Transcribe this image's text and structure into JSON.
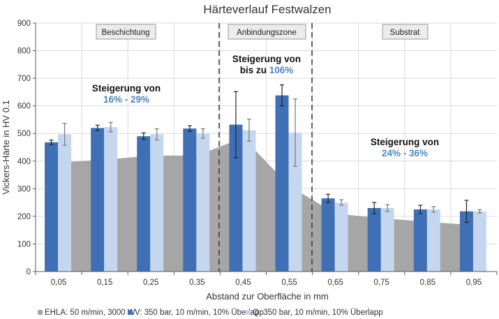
{
  "chart_data": {
    "type": "bar",
    "title": "Härteverlauf Festwalzen",
    "xlabel": "Abstand zur Oberfläche in mm",
    "ylabel": "Vickers-Härte in HV 0.1",
    "ylim": [
      0,
      900
    ],
    "yticks": [
      "0",
      "100",
      "200",
      "300",
      "400",
      "500",
      "600",
      "700",
      "800",
      "900"
    ],
    "grid": true,
    "legend_position": "bottom",
    "categories": [
      "0,05",
      "0,15",
      "0,25",
      "0,35",
      "0,45",
      "0,55",
      "0,65",
      "0,75",
      "0,85",
      "0,95"
    ],
    "series": [
      {
        "name": "EHLA: 50 m/min, 3000 W",
        "type": "area",
        "color": "#a6a6a6",
        "values": [
          395,
          405,
          420,
          420,
          485,
          310,
          210,
          193,
          180,
          168
        ]
      },
      {
        "name": "V: 350 bar, 10 m/min, 10% Überlapp",
        "type": "bar",
        "color": "#3f6fb5",
        "error_color": "#222222",
        "values": [
          468,
          520,
          490,
          518,
          532,
          638,
          265,
          230,
          225,
          218
        ],
        "errors": [
          8,
          10,
          12,
          10,
          120,
          38,
          15,
          20,
          15,
          40
        ]
      },
      {
        "name": "Q: 350 bar, 10 m/min, 10% Überlapp",
        "type": "bar",
        "color": "#c5d7ee",
        "error_color": "#777777",
        "values": [
          497,
          523,
          497,
          500,
          512,
          503,
          250,
          230,
          225,
          218
        ],
        "errors": [
          40,
          17,
          20,
          17,
          40,
          122,
          10,
          12,
          10,
          6
        ]
      }
    ],
    "zones": [
      {
        "label": "Beschichtung"
      },
      {
        "label": "Anbindungszone"
      },
      {
        "label": "Substrat"
      }
    ],
    "zone_dividers": [
      "0,40",
      "0,60"
    ],
    "annotations": [
      {
        "line1": "Steigerung von",
        "line2": "16% - 29%"
      },
      {
        "line1": "Steigerung von",
        "line2a": "bis zu ",
        "line2b": "106%"
      },
      {
        "line1": "Steigerung von",
        "line2": "24% - 36%"
      }
    ],
    "annotation_color": "#4a86c8"
  }
}
